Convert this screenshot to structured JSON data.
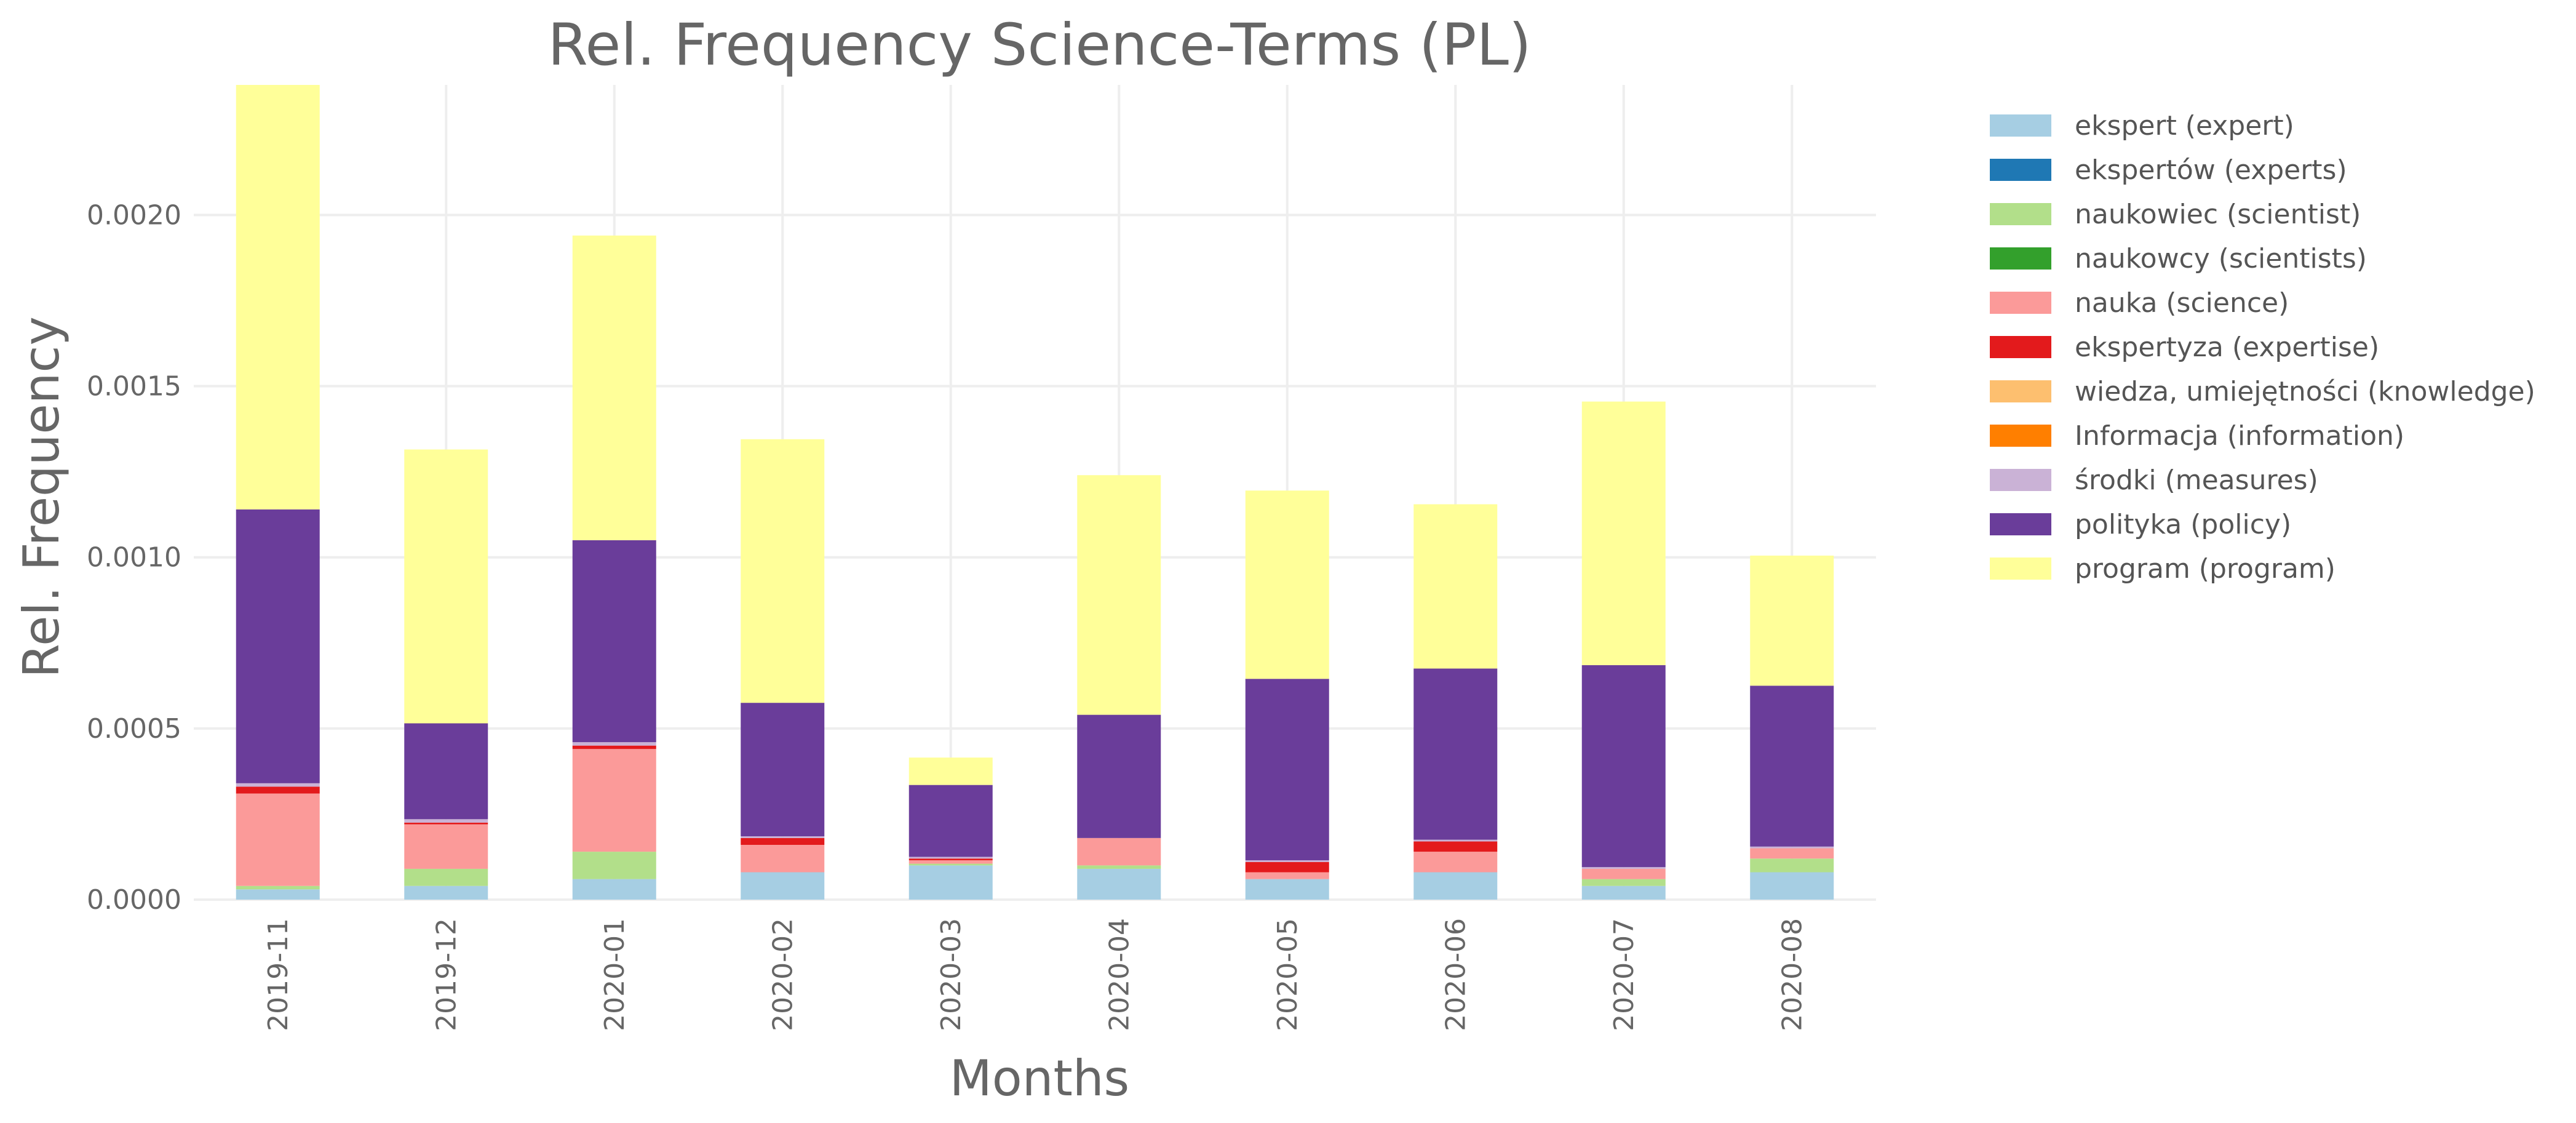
{
  "chart_data": {
    "type": "bar",
    "stacked": true,
    "title": "Rel. Frequency Science-Terms (PL)",
    "xlabel": "Months",
    "ylabel": "Rel. Frequency",
    "ylim": [
      0,
      0.00238
    ],
    "yticks": [
      "0.0000",
      "0.0005",
      "0.0010",
      "0.0015",
      "0.0020"
    ],
    "ytick_values": [
      0,
      0.0005,
      0.001,
      0.0015,
      0.002
    ],
    "grid": true,
    "legend_position": "right",
    "categories": [
      "2019-11",
      "2019-12",
      "2020-01",
      "2020-02",
      "2020-03",
      "2020-04",
      "2020-05",
      "2020-06",
      "2020-07",
      "2020-08"
    ],
    "series": [
      {
        "name": "ekspert (expert)",
        "color": "#a6cee3",
        "values": [
          3e-05,
          4e-05,
          6e-05,
          8e-05,
          0.0001,
          9e-05,
          6e-05,
          8e-05,
          4e-05,
          8e-05
        ]
      },
      {
        "name": "ekspertów (experts)",
        "color": "#1f78b4",
        "values": [
          0,
          0,
          0,
          0,
          0,
          0,
          0,
          0,
          0,
          0
        ]
      },
      {
        "name": "naukowiec (scientist)",
        "color": "#b2df8a",
        "values": [
          1e-05,
          5e-05,
          8e-05,
          0,
          5e-06,
          1e-05,
          0,
          0,
          2e-05,
          4e-05
        ]
      },
      {
        "name": "naukowcy (scientists)",
        "color": "#33a02c",
        "values": [
          0,
          0,
          0,
          0,
          0,
          0,
          0,
          0,
          0,
          0
        ]
      },
      {
        "name": "nauka (science)",
        "color": "#fb9a99",
        "values": [
          0.00027,
          0.00013,
          0.0003,
          8e-05,
          1e-05,
          8e-05,
          2e-05,
          6e-05,
          3e-05,
          3e-05
        ]
      },
      {
        "name": "ekspertyza (expertise)",
        "color": "#e31a1c",
        "values": [
          2e-05,
          5e-06,
          1e-05,
          2e-05,
          5e-06,
          0,
          3e-05,
          3e-05,
          0,
          0
        ]
      },
      {
        "name": "wiedza, umiejętności (knowledge)",
        "color": "#fdbf6f",
        "values": [
          0,
          0,
          0,
          0,
          0,
          0,
          0,
          0,
          0,
          0
        ]
      },
      {
        "name": "Informacja (information)",
        "color": "#ff7f00",
        "values": [
          0,
          0,
          0,
          0,
          0,
          0,
          0,
          0,
          0,
          0
        ]
      },
      {
        "name": "środki (measures)",
        "color": "#cab2d6",
        "values": [
          1e-05,
          1e-05,
          1e-05,
          5e-06,
          5e-06,
          0,
          5e-06,
          5e-06,
          5e-06,
          5e-06
        ]
      },
      {
        "name": "polityka (policy)",
        "color": "#6a3d9a",
        "values": [
          0.0008,
          0.00028,
          0.00059,
          0.00039,
          0.00021,
          0.00036,
          0.00053,
          0.0005,
          0.00059,
          0.00047
        ]
      },
      {
        "name": "program (program)",
        "color": "#ffff99",
        "values": [
          0.00124,
          0.0008,
          0.00089,
          0.00077,
          8e-05,
          0.0007,
          0.00055,
          0.00048,
          0.00077,
          0.00038
        ]
      }
    ]
  }
}
